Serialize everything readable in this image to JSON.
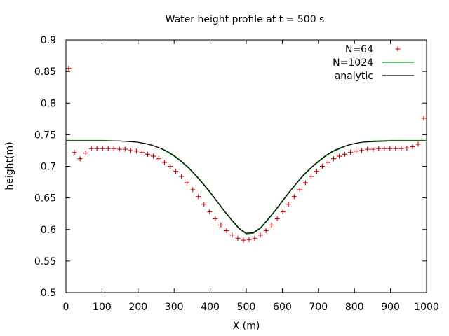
{
  "chart_data": {
    "type": "line",
    "title": "Water height profile at t = 500 s",
    "xlabel": "X (m)",
    "ylabel": "height(m)",
    "xlim": [
      0,
      1000
    ],
    "ylim": [
      0.5,
      0.9
    ],
    "x_ticks": [
      0,
      100,
      200,
      300,
      400,
      500,
      600,
      700,
      800,
      900,
      1000
    ],
    "y_ticks": [
      0.5,
      0.55,
      0.6,
      0.65,
      0.7,
      0.75,
      0.8,
      0.85,
      0.9
    ],
    "x_tick_labels": [
      "0",
      "100",
      "200",
      "300",
      "400",
      "500",
      "600",
      "700",
      "800",
      "900",
      "1000"
    ],
    "y_tick_labels": [
      "0.5",
      "0.55",
      "0.6",
      "0.65",
      "0.7",
      "0.75",
      "0.8",
      "0.85",
      "0.9"
    ],
    "grid": false,
    "legend_position": "top-right",
    "series": [
      {
        "name": "N=64",
        "style": "points",
        "marker": "+",
        "color": "#cc0000",
        "x": [
          7.8,
          23.4,
          39.1,
          54.7,
          70.3,
          85.9,
          101.6,
          117.2,
          132.8,
          148.4,
          164.1,
          179.7,
          195.3,
          210.9,
          226.6,
          242.2,
          257.8,
          273.4,
          289.1,
          304.7,
          320.3,
          335.9,
          351.6,
          367.2,
          382.8,
          398.4,
          414.1,
          429.7,
          445.3,
          460.9,
          476.6,
          492.2,
          507.8,
          523.4,
          539.1,
          554.7,
          570.3,
          585.9,
          601.6,
          617.2,
          632.8,
          648.4,
          664.1,
          679.7,
          695.3,
          710.9,
          726.6,
          742.2,
          757.8,
          773.4,
          789.1,
          804.7,
          820.3,
          835.9,
          851.6,
          867.2,
          882.8,
          898.4,
          914.1,
          929.7,
          945.3,
          960.9,
          976.6,
          992.2
        ],
        "y": [
          0.855,
          0.722,
          0.712,
          0.721,
          0.728,
          0.728,
          0.728,
          0.728,
          0.728,
          0.727,
          0.727,
          0.725,
          0.724,
          0.722,
          0.719,
          0.716,
          0.712,
          0.706,
          0.7,
          0.692,
          0.684,
          0.674,
          0.663,
          0.652,
          0.64,
          0.628,
          0.617,
          0.607,
          0.598,
          0.591,
          0.586,
          0.583,
          0.584,
          0.586,
          0.591,
          0.598,
          0.607,
          0.617,
          0.628,
          0.64,
          0.652,
          0.663,
          0.674,
          0.684,
          0.692,
          0.7,
          0.706,
          0.712,
          0.716,
          0.719,
          0.722,
          0.724,
          0.725,
          0.727,
          0.727,
          0.728,
          0.728,
          0.728,
          0.728,
          0.728,
          0.729,
          0.731,
          0.735,
          0.776
        ]
      },
      {
        "name": "N=1024",
        "style": "line",
        "color": "#00a000",
        "x": [
          0,
          50,
          100,
          150,
          180,
          200,
          220,
          240,
          260,
          280,
          300,
          320,
          340,
          360,
          380,
          400,
          420,
          440,
          460,
          480,
          500,
          520,
          540,
          560,
          580,
          600,
          620,
          640,
          660,
          680,
          700,
          720,
          740,
          760,
          780,
          800,
          820,
          850,
          900,
          950,
          1000
        ],
        "y": [
          0.741,
          0.741,
          0.741,
          0.74,
          0.739,
          0.738,
          0.736,
          0.733,
          0.729,
          0.723,
          0.716,
          0.707,
          0.697,
          0.685,
          0.672,
          0.658,
          0.643,
          0.628,
          0.614,
          0.601,
          0.593,
          0.594,
          0.602,
          0.615,
          0.629,
          0.644,
          0.659,
          0.673,
          0.686,
          0.697,
          0.707,
          0.716,
          0.723,
          0.728,
          0.733,
          0.736,
          0.738,
          0.74,
          0.741,
          0.741,
          0.741
        ]
      },
      {
        "name": "analytic",
        "style": "line",
        "color": "#000000",
        "x": [
          0,
          50,
          100,
          150,
          180,
          200,
          220,
          240,
          260,
          280,
          300,
          320,
          340,
          360,
          380,
          400,
          420,
          440,
          460,
          480,
          500,
          520,
          540,
          560,
          580,
          600,
          620,
          640,
          660,
          680,
          700,
          720,
          740,
          760,
          780,
          800,
          820,
          850,
          900,
          950,
          1000
        ],
        "y": [
          0.74,
          0.74,
          0.74,
          0.74,
          0.739,
          0.738,
          0.736,
          0.733,
          0.729,
          0.724,
          0.717,
          0.708,
          0.698,
          0.686,
          0.673,
          0.659,
          0.644,
          0.629,
          0.615,
          0.602,
          0.594,
          0.595,
          0.603,
          0.616,
          0.63,
          0.645,
          0.66,
          0.674,
          0.687,
          0.698,
          0.708,
          0.717,
          0.724,
          0.729,
          0.733,
          0.736,
          0.738,
          0.739,
          0.74,
          0.74,
          0.74
        ]
      }
    ]
  }
}
